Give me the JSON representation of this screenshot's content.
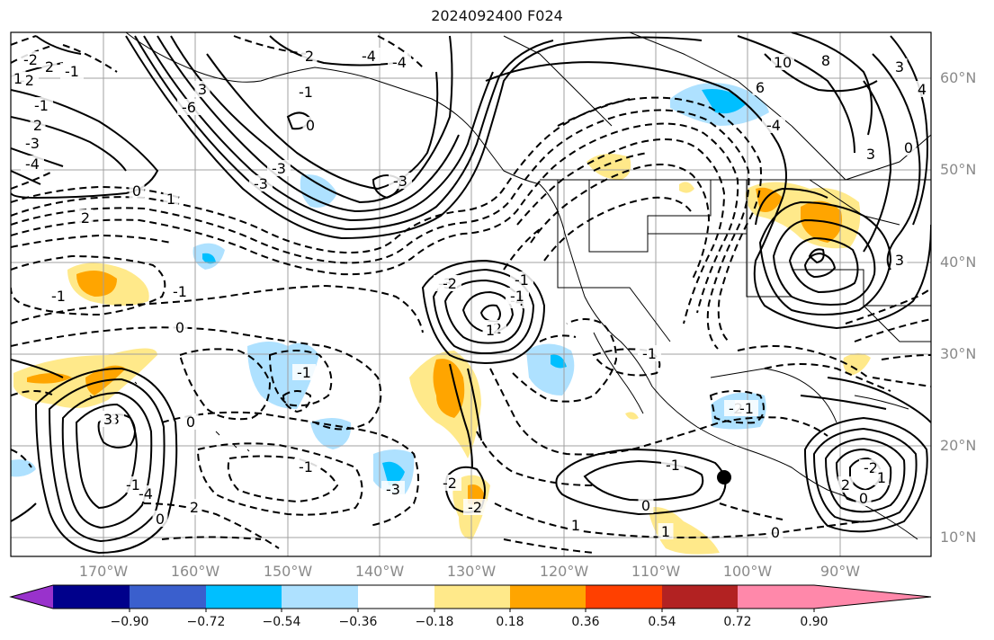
{
  "title": "2024092400 F024",
  "lat_labels": [
    "60°N",
    "50°N",
    "40°N",
    "30°N",
    "20°N",
    "10°N"
  ],
  "lon_labels": [
    "170°W",
    "160°W",
    "150°W",
    "140°W",
    "130°W",
    "120°W",
    "110°W",
    "100°W",
    "90°W"
  ],
  "colorbar": {
    "tick_labels": [
      "−0.90",
      "−0.72",
      "−0.54",
      "−0.36",
      "−0.18",
      "0.18",
      "0.36",
      "0.54",
      "0.72",
      "0.90"
    ],
    "colors": [
      "#9932cc",
      "#00008b",
      "#3a5fcd",
      "#00bfff",
      "#aee1ff",
      "#ffffff",
      "#ffe98a",
      "#ffa500",
      "#ff4000",
      "#b22222",
      "#ff88aa"
    ]
  },
  "contour_labels": [
    "-2",
    "2",
    "-1",
    "-2",
    "2",
    "-1",
    "0",
    "1",
    "2",
    "-3",
    "-4",
    "2",
    "-4",
    "-4",
    "-6",
    "3",
    "-1",
    "0",
    "-3",
    "-3",
    "-3",
    "-3",
    "-4",
    "-2",
    "0",
    "-1",
    "-1",
    "-1",
    "-3",
    "-4",
    "-1",
    "0",
    "0",
    "2",
    "-1",
    "-3",
    "-2",
    "-2",
    "-1",
    "0",
    "1",
    "1",
    "0",
    "-2",
    "-1",
    "-1",
    "-1",
    "-2",
    "1",
    "-1",
    "1",
    "3",
    "2",
    "0",
    "-2",
    "1",
    "10",
    "8",
    "6",
    "-4",
    "3",
    "0",
    "3",
    "4",
    "3"
  ],
  "colors": {
    "positive_contour": "#000000",
    "negative_contour": "#000000",
    "grid": "#a0a0a0",
    "coastline": "#000000"
  }
}
